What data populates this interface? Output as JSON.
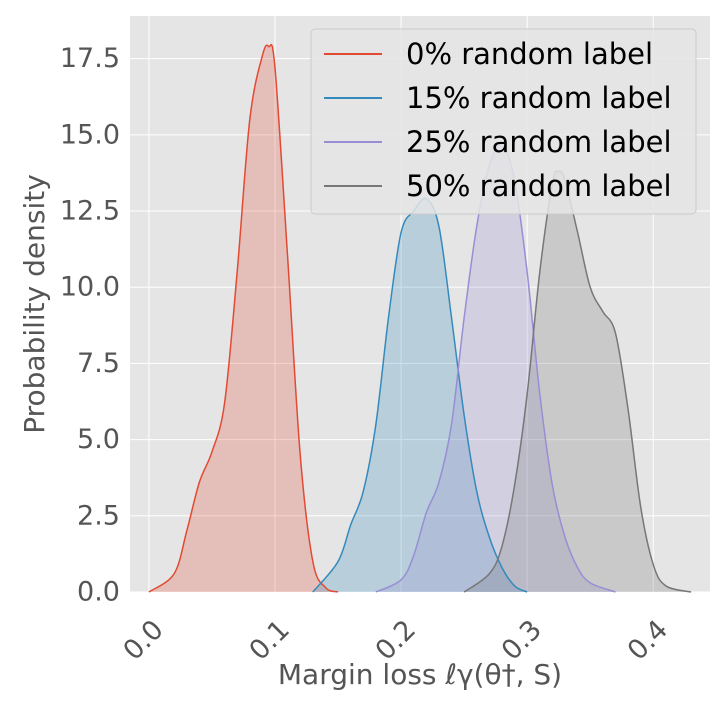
{
  "chart_data": {
    "type": "area",
    "xlabel": "Margin loss ℓγ(θ†, S)",
    "ylabel": "Probability density",
    "xlim": [
      -0.015,
      0.445
    ],
    "ylim": [
      0,
      18.9
    ],
    "xticks": [
      0.0,
      0.1,
      0.2,
      0.3,
      0.4
    ],
    "xtick_labels": [
      "0.0",
      "0.1",
      "0.2",
      "0.3",
      "0.4"
    ],
    "yticks": [
      0.0,
      2.5,
      5.0,
      7.5,
      10.0,
      12.5,
      15.0,
      17.5
    ],
    "ytick_labels": [
      "0.0",
      "2.5",
      "5.0",
      "7.5",
      "10.0",
      "12.5",
      "15.0",
      "17.5"
    ],
    "grid": true,
    "legend_position": "top-right",
    "series": [
      {
        "name": "0% random label",
        "color": "#E24A33",
        "x": [
          0.0,
          0.02,
          0.03,
          0.04,
          0.05,
          0.06,
          0.07,
          0.08,
          0.09,
          0.095,
          0.1,
          0.11,
          0.12,
          0.13,
          0.14,
          0.15
        ],
        "y": [
          0.0,
          0.6,
          2.0,
          3.6,
          4.6,
          6.2,
          10.5,
          15.5,
          17.6,
          17.9,
          17.2,
          11.0,
          4.5,
          1.0,
          0.15,
          0.0
        ]
      },
      {
        "name": "15% random label",
        "color": "#348ABD",
        "x": [
          0.13,
          0.15,
          0.16,
          0.17,
          0.18,
          0.19,
          0.2,
          0.21,
          0.22,
          0.23,
          0.24,
          0.25,
          0.26,
          0.27,
          0.28,
          0.29,
          0.3
        ],
        "y": [
          0.0,
          1.0,
          2.2,
          3.3,
          5.5,
          9.0,
          11.8,
          12.5,
          12.9,
          12.0,
          9.0,
          5.8,
          3.3,
          1.8,
          0.8,
          0.2,
          0.0
        ]
      },
      {
        "name": "25% random label",
        "color": "#988ED5",
        "x": [
          0.18,
          0.2,
          0.21,
          0.22,
          0.23,
          0.24,
          0.25,
          0.26,
          0.27,
          0.28,
          0.29,
          0.3,
          0.31,
          0.32,
          0.33,
          0.34,
          0.35,
          0.37
        ],
        "y": [
          0.0,
          0.4,
          1.2,
          2.6,
          3.6,
          5.5,
          9.0,
          12.0,
          14.0,
          14.7,
          13.5,
          10.5,
          6.5,
          3.5,
          1.8,
          0.8,
          0.3,
          0.0
        ]
      },
      {
        "name": "50% random label",
        "color": "#777777",
        "x": [
          0.25,
          0.27,
          0.28,
          0.29,
          0.3,
          0.31,
          0.32,
          0.325,
          0.33,
          0.34,
          0.35,
          0.36,
          0.37,
          0.38,
          0.39,
          0.4,
          0.41,
          0.43
        ],
        "y": [
          0.0,
          0.6,
          1.5,
          3.5,
          6.5,
          10.5,
          13.4,
          13.8,
          13.5,
          11.8,
          10.0,
          9.2,
          8.5,
          6.0,
          2.8,
          0.9,
          0.2,
          0.0
        ]
      }
    ]
  }
}
